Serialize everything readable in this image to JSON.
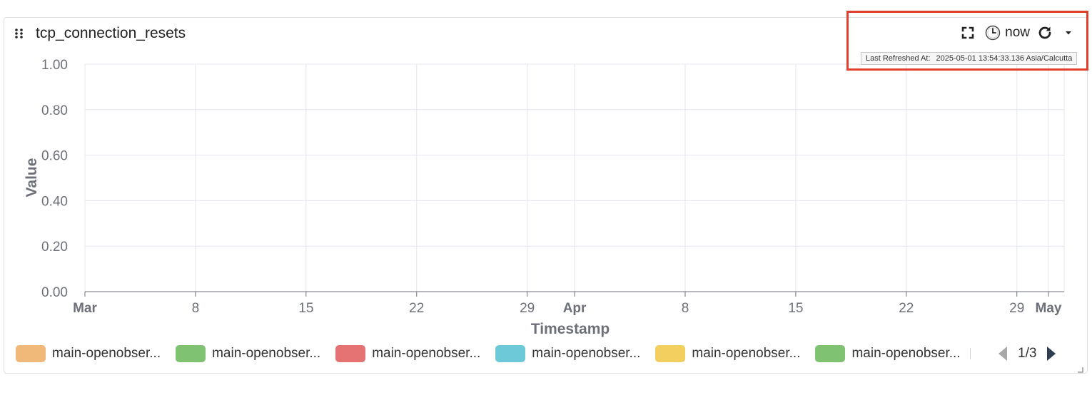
{
  "panel": {
    "title": "tcp_connection_resets"
  },
  "toolbar": {
    "time_label": "now",
    "fullscreen_icon": "fullscreen-icon",
    "clock_icon": "clock-icon",
    "refresh_icon": "refresh-icon",
    "dropdown_icon": "caret-down-icon"
  },
  "tooltip": {
    "label": "Last Refreshed At:",
    "value": "2025-05-01 13:54:33.136 Asia/Calcutta"
  },
  "chart_data": {
    "type": "line",
    "xlabel": "Timestamp",
    "ylabel": "Value",
    "ylim": [
      0,
      1
    ],
    "yticks": [
      "0.00",
      "0.20",
      "0.40",
      "0.60",
      "0.80",
      "1.00"
    ],
    "xlim": [
      "2025-03-01",
      "2025-05-01"
    ],
    "xticks": [
      {
        "date": "2025-03-01",
        "label": "Mar",
        "major": true
      },
      {
        "date": "2025-03-08",
        "label": "8",
        "major": false
      },
      {
        "date": "2025-03-15",
        "label": "15",
        "major": false
      },
      {
        "date": "2025-03-22",
        "label": "22",
        "major": false
      },
      {
        "date": "2025-03-29",
        "label": "29",
        "major": false
      },
      {
        "date": "2025-04-01",
        "label": "Apr",
        "major": true
      },
      {
        "date": "2025-04-08",
        "label": "8",
        "major": false
      },
      {
        "date": "2025-04-15",
        "label": "15",
        "major": false
      },
      {
        "date": "2025-04-22",
        "label": "22",
        "major": false
      },
      {
        "date": "2025-04-29",
        "label": "29",
        "major": false
      },
      {
        "date": "2025-05-01",
        "label": "May",
        "major": true
      }
    ],
    "grid": true,
    "series": []
  },
  "legend": {
    "items": [
      {
        "label": "main-openobser...",
        "color": "#f0b97a"
      },
      {
        "label": "main-openobser...",
        "color": "#7ec272"
      },
      {
        "label": "main-openobser...",
        "color": "#e57373"
      },
      {
        "label": "main-openobser...",
        "color": "#6dc8d8"
      },
      {
        "label": "main-openobser...",
        "color": "#f2cf5e"
      },
      {
        "label": "main-openobser...",
        "color": "#7ec272"
      }
    ],
    "page": "1/3"
  },
  "colors": {
    "highlight": "#e0412d",
    "grid": "#e4e6ef",
    "axis_text": "#6e7079"
  }
}
